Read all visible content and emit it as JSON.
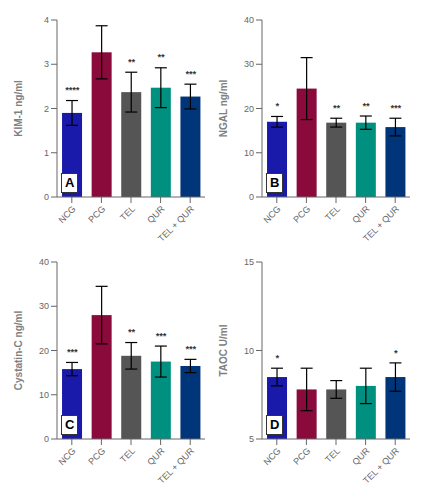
{
  "chart_data": [
    {
      "type": "bar",
      "title": "A",
      "ylabel": "KIM-1 ng/ml",
      "ylim": [
        0,
        4
      ],
      "yticks": [
        0,
        1,
        2,
        3,
        4
      ],
      "categories": [
        "NCG",
        "PCG",
        "TEL",
        "QUR",
        "TEL + QUR"
      ],
      "values": [
        1.9,
        3.27,
        2.37,
        2.47,
        2.27
      ],
      "errors": [
        0.28,
        0.6,
        0.45,
        0.45,
        0.28
      ],
      "colors": [
        "#1a1aaa",
        "#8b0a3c",
        "#555555",
        "#009080",
        "#00357a"
      ],
      "sig_labels": [
        "****",
        null,
        "**",
        "**",
        "***"
      ]
    },
    {
      "type": "bar",
      "title": "B",
      "ylabel": "NGAL ng/ml",
      "ylim": [
        0,
        40
      ],
      "yticks": [
        0,
        10,
        20,
        30,
        40
      ],
      "categories": [
        "NCG",
        "PCG",
        "TEL",
        "QUR",
        "TEL + QUR"
      ],
      "values": [
        17.0,
        24.5,
        16.8,
        16.8,
        15.8
      ],
      "errors": [
        1.2,
        7.0,
        1.0,
        1.5,
        2.0
      ],
      "colors": [
        "#1a1aaa",
        "#8b0a3c",
        "#555555",
        "#009080",
        "#00357a"
      ],
      "sig_labels": [
        "*",
        null,
        "**",
        "**",
        "***"
      ]
    },
    {
      "type": "bar",
      "title": "C",
      "ylabel": "Cystatin-C ng/ml",
      "ylim": [
        0,
        40
      ],
      "yticks": [
        0,
        10,
        20,
        30,
        40
      ],
      "categories": [
        "NCG",
        "PCG",
        "TEL",
        "QUR",
        "TEL + QUR"
      ],
      "values": [
        15.8,
        28.0,
        18.8,
        17.5,
        16.5
      ],
      "errors": [
        1.5,
        6.5,
        3.0,
        3.5,
        1.5
      ],
      "colors": [
        "#1a1aaa",
        "#8b0a3c",
        "#555555",
        "#009080",
        "#00357a"
      ],
      "sig_labels": [
        "***",
        null,
        "**",
        "***",
        "***"
      ]
    },
    {
      "type": "bar",
      "title": "D",
      "ylabel": "TAOC U/ml",
      "ylim": [
        5,
        15
      ],
      "yticks": [
        5,
        10,
        15
      ],
      "categories": [
        "NCG",
        "PCG",
        "TEL",
        "QUR",
        "TEL + QUR"
      ],
      "values": [
        8.5,
        7.8,
        7.8,
        8.0,
        8.5
      ],
      "errors": [
        0.5,
        1.2,
        0.5,
        1.0,
        0.8
      ],
      "colors": [
        "#1a1aaa",
        "#8b0a3c",
        "#555555",
        "#009080",
        "#00357a"
      ],
      "sig_labels": [
        "*",
        null,
        null,
        null,
        "*"
      ]
    }
  ]
}
